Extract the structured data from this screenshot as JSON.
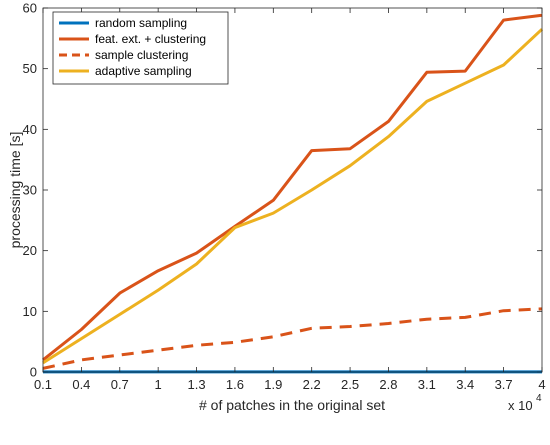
{
  "chart_data": {
    "type": "line",
    "title": "",
    "xlabel": "# of patches in the original set",
    "ylabel": "processing time [s]",
    "x_multiplier_label": "x 10",
    "x_multiplier_exponent": "4",
    "x": [
      0.1,
      0.4,
      0.7,
      1.0,
      1.3,
      1.6,
      1.9,
      2.2,
      2.5,
      2.8,
      3.1,
      3.4,
      3.7,
      4.0
    ],
    "x_tick_labels": [
      "0.1",
      "0.4",
      "0.7",
      "1",
      "1.3",
      "1.6",
      "1.9",
      "2.2",
      "2.5",
      "2.8",
      "3.1",
      "3.4",
      "3.7",
      "4"
    ],
    "xlim": [
      0.1,
      4.0
    ],
    "ylim": [
      0,
      60
    ],
    "y_ticks": [
      0,
      10,
      20,
      30,
      40,
      50,
      60
    ],
    "y_tick_labels": [
      "0",
      "10",
      "20",
      "30",
      "40",
      "50",
      "60"
    ],
    "grid": false,
    "legend_position": "top-left",
    "series": [
      {
        "name": "random sampling",
        "color": "#0072BD",
        "style": "solid",
        "values": [
          0.02,
          0.02,
          0.02,
          0.02,
          0.02,
          0.02,
          0.02,
          0.02,
          0.02,
          0.02,
          0.02,
          0.02,
          0.02,
          0.02
        ]
      },
      {
        "name": "feat. ext. + clustering",
        "color": "#D95319",
        "style": "solid",
        "values": [
          2.0,
          7.0,
          13.0,
          16.7,
          19.6,
          24.0,
          28.3,
          36.5,
          36.8,
          41.3,
          49.4,
          49.6,
          58.0,
          58.8
        ]
      },
      {
        "name": "sample clustering",
        "color": "#D95319",
        "style": "dashed",
        "values": [
          0.6,
          2.0,
          2.8,
          3.6,
          4.4,
          4.9,
          5.8,
          7.2,
          7.5,
          8.0,
          8.7,
          9.0,
          10.1,
          10.4
        ]
      },
      {
        "name": "adaptive sampling",
        "color": "#EDB120",
        "style": "solid",
        "values": [
          1.5,
          5.5,
          9.5,
          13.5,
          17.8,
          23.8,
          26.2,
          30.0,
          34.0,
          38.8,
          44.6,
          47.6,
          50.6,
          56.5
        ]
      }
    ]
  }
}
